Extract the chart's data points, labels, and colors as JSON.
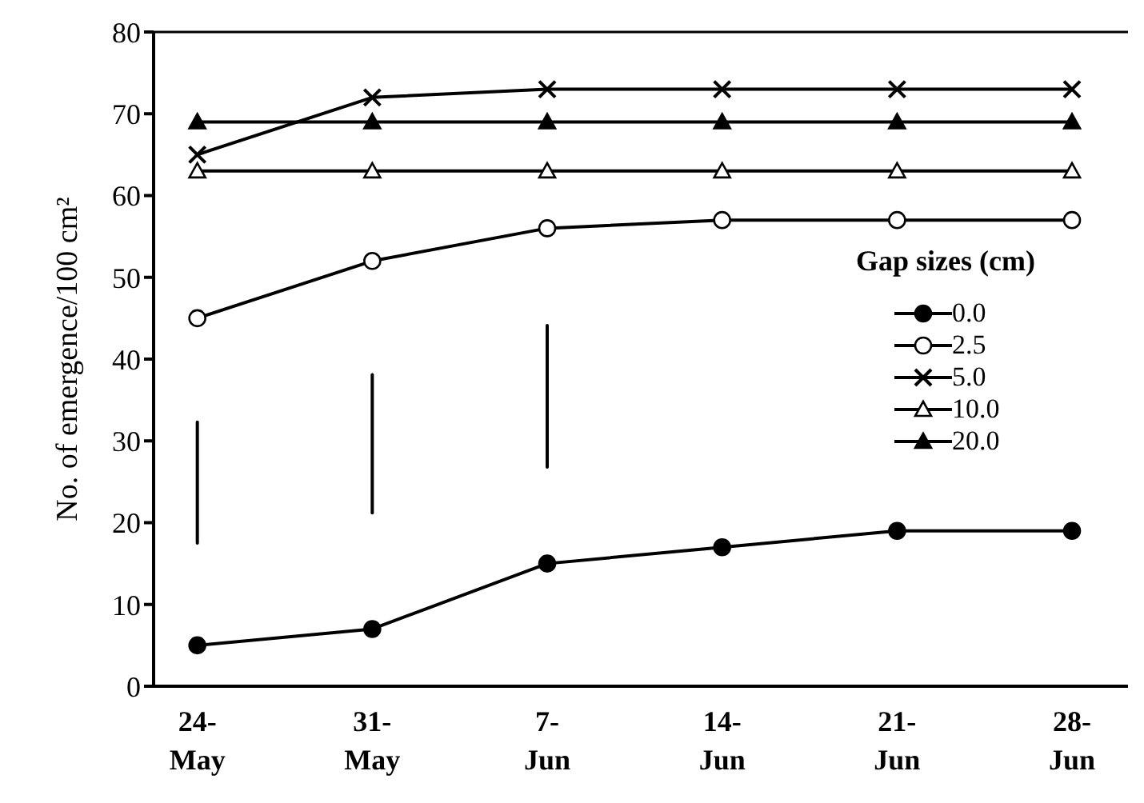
{
  "chart_data": {
    "type": "line",
    "ylabel": "No. of emergence/100 cm²",
    "legend_title": "Gap sizes (cm)",
    "legend": "right",
    "categories": [
      "24-May",
      "31-May",
      "7-Jun",
      "14-Jun",
      "21-Jun",
      "28-Jun"
    ],
    "ylim": [
      0,
      80
    ],
    "yticks": [
      0,
      10,
      20,
      30,
      40,
      50,
      60,
      70,
      80
    ],
    "series": [
      {
        "name": "0.0",
        "color": "#000000",
        "marker": "circle",
        "values": [
          5,
          7,
          15,
          17,
          19,
          19
        ]
      },
      {
        "name": "2.5",
        "color": "#000000",
        "marker": "circle-open",
        "values": [
          45,
          52,
          56,
          57,
          57,
          57
        ]
      },
      {
        "name": "5.0",
        "color": "#000000",
        "marker": "cross",
        "values": [
          65,
          72,
          73,
          73,
          73,
          73
        ]
      },
      {
        "name": "10.0",
        "color": "#000000",
        "marker": "triangle-open",
        "values": [
          63,
          63,
          63,
          63,
          63,
          63
        ]
      },
      {
        "name": "20.0",
        "color": "#000000",
        "marker": "triangle",
        "values": [
          69,
          69,
          69,
          69,
          69,
          69
        ]
      },
      {
        "color": "#000000",
        "marker": "none",
        "x": [
          "24-May",
          "24-May"
        ],
        "values": [
          17.5,
          32.3
        ]
      },
      {
        "color": "#000000",
        "marker": "none",
        "x": [
          "31-May",
          "31-May"
        ],
        "values": [
          21.2,
          38.1
        ]
      },
      {
        "color": "#000000",
        "marker": "none",
        "x": [
          "7-Jun",
          "7-Jun"
        ],
        "values": [
          26.8,
          44.1
        ]
      }
    ]
  }
}
